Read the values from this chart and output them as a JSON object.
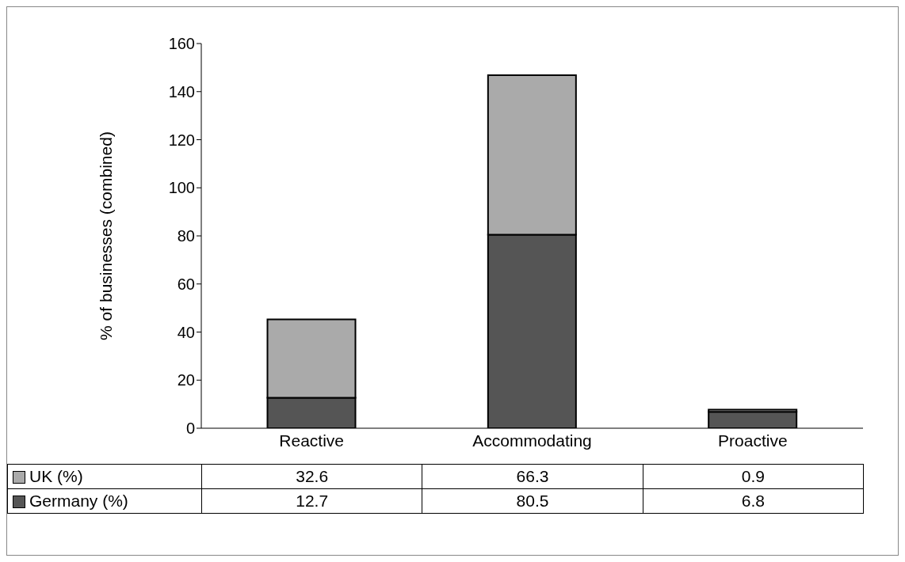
{
  "chart_data": {
    "type": "bar",
    "stacked": true,
    "ylabel": "% of businesses (combined)",
    "categories": [
      "Reactive",
      "Accommodating",
      "Proactive"
    ],
    "series": [
      {
        "name": "Germany (%)",
        "color": "#555555",
        "values": [
          12.7,
          80.5,
          6.8
        ]
      },
      {
        "name": "UK (%)",
        "color": "#aaaaaa",
        "values": [
          32.6,
          66.3,
          0.9
        ]
      }
    ],
    "ylim": [
      0,
      160
    ],
    "yticks": [
      0,
      20,
      40,
      60,
      80,
      100,
      120,
      140,
      160
    ],
    "grid": false,
    "legend": "bottom",
    "data_labels": true
  }
}
